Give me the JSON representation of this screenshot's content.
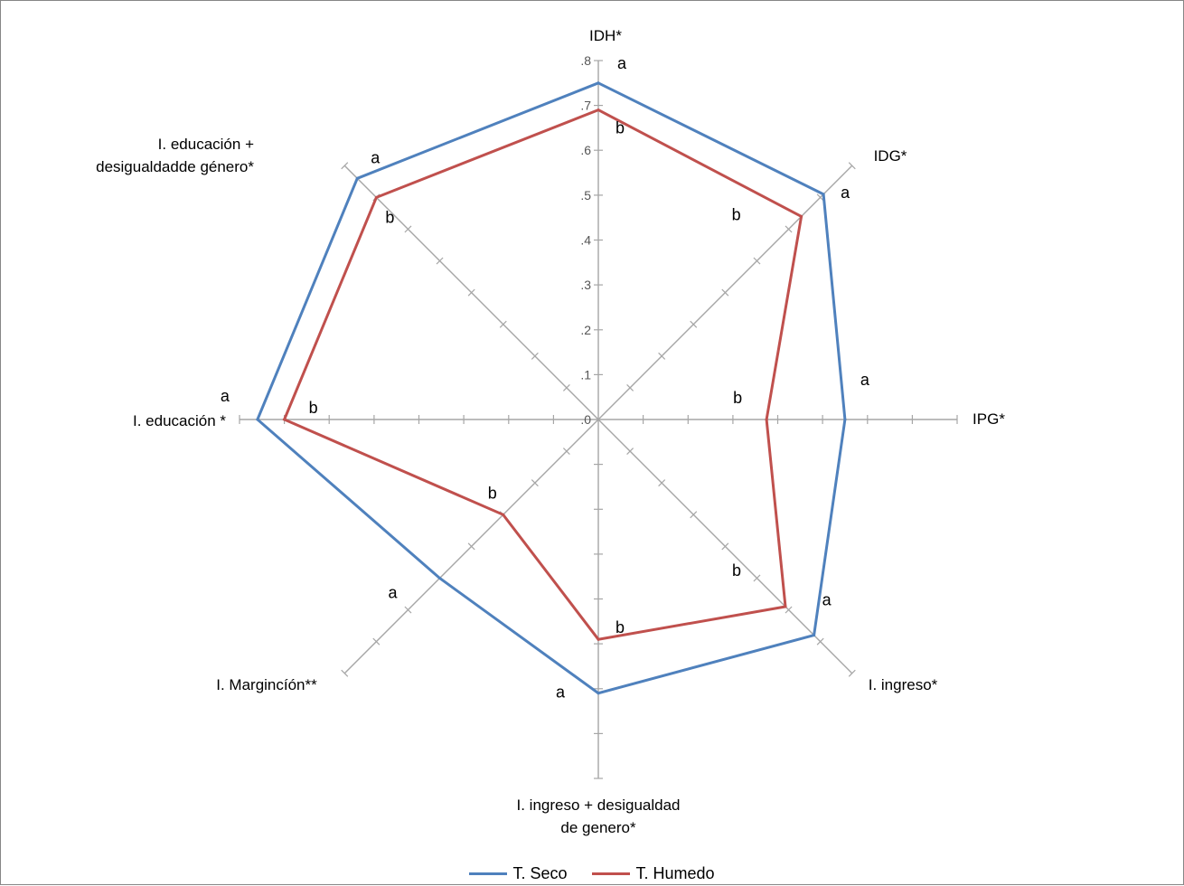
{
  "chart_data": {
    "type": "radar",
    "axes": [
      {
        "lines": [
          "IDH*"
        ]
      },
      {
        "lines": [
          "IDG*"
        ]
      },
      {
        "lines": [
          "IPG*"
        ]
      },
      {
        "lines": [
          "I. ingreso*"
        ]
      },
      {
        "lines": [
          "I. ingreso + desigualdad",
          "de genero*"
        ]
      },
      {
        "lines": [
          "I.  Margincíón**"
        ]
      },
      {
        "lines": [
          "I. educación  *"
        ]
      },
      {
        "lines": [
          "I. educación +",
          "desigualdadde género*"
        ]
      }
    ],
    "rlim": [
      0,
      0.8
    ],
    "tick_labels": [
      ".0",
      ".1",
      ".2",
      ".3",
      ".4",
      ".5",
      ".6",
      ".7",
      ".8"
    ],
    "series": [
      {
        "name": "T. Seco",
        "color": "#4F81BD",
        "values": [
          0.75,
          0.71,
          0.55,
          0.68,
          0.61,
          0.5,
          0.76,
          0.76
        ],
        "sig_labels": [
          "a",
          "a",
          "a",
          "a",
          "a",
          "a",
          "a",
          "a"
        ]
      },
      {
        "name": "T. Humedo",
        "color": "#C0504D",
        "values": [
          0.69,
          0.64,
          0.375,
          0.59,
          0.49,
          0.3,
          0.7,
          0.7
        ],
        "sig_labels": [
          "b",
          "b",
          "b",
          "b",
          "b",
          "b",
          "b",
          "b"
        ]
      }
    ],
    "legend": "bottom",
    "grid": false
  }
}
